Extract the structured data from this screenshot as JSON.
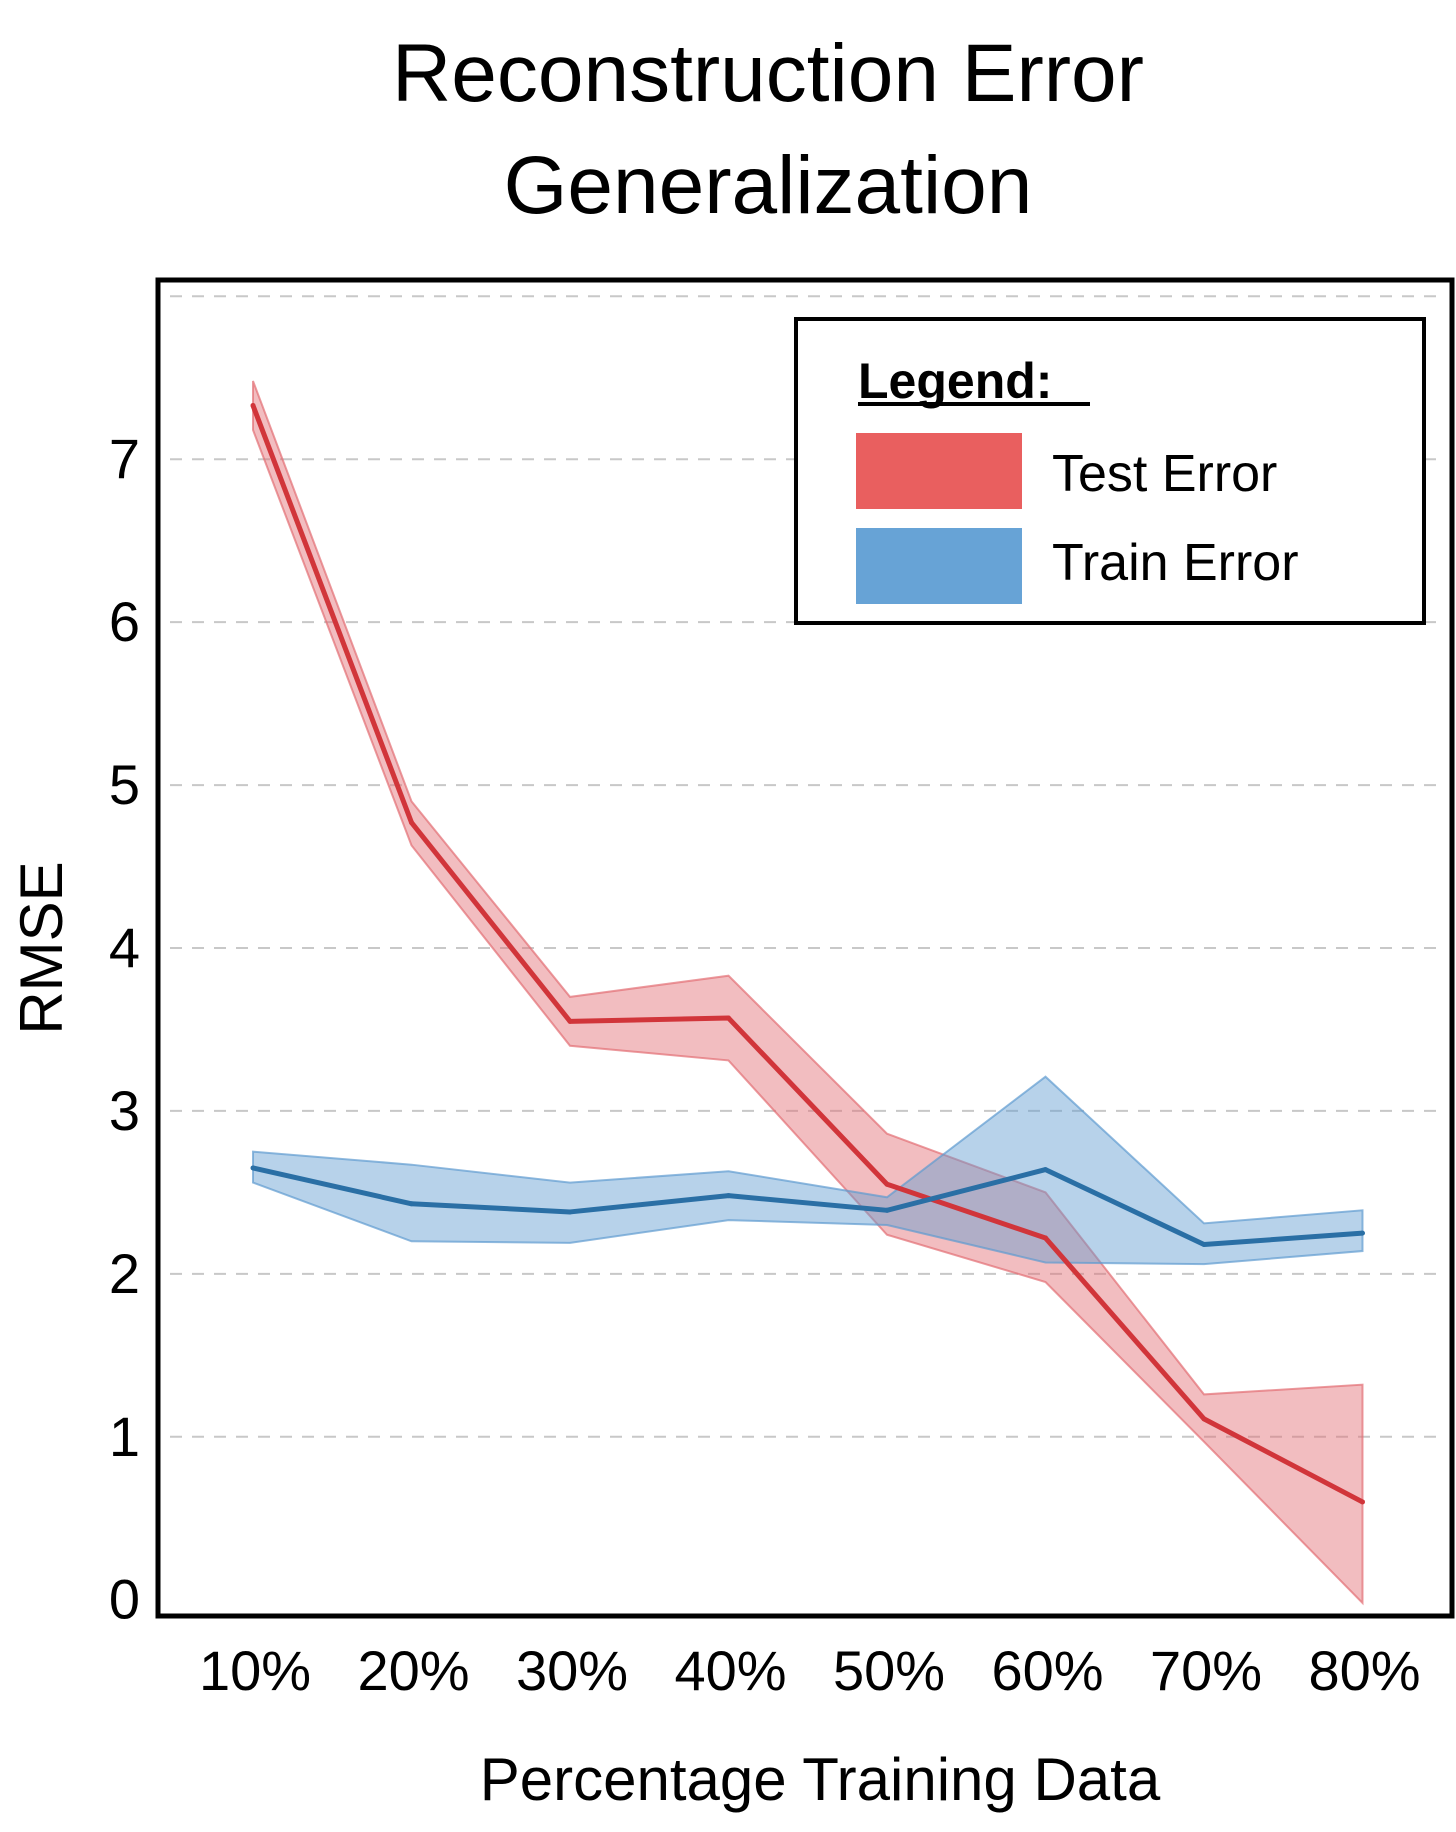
{
  "chart_data": {
    "type": "line",
    "title": [
      "Reconstruction Error",
      "Generalization"
    ],
    "xlabel": "Percentage Training Data",
    "ylabel": "RMSE",
    "categories": [
      "10%",
      "20%",
      "30%",
      "40%",
      "50%",
      "60%",
      "70%",
      "80%"
    ],
    "yticks": [
      "0",
      "1",
      "2",
      "3",
      "4",
      "5",
      "6",
      "7"
    ],
    "ylim": [
      -0.1,
      8.1
    ],
    "grid": true,
    "legend": {
      "title": "Legend:",
      "placement": "top-right"
    },
    "series": [
      {
        "name": "Test Error",
        "color": "#d1353a",
        "band_color": "#e36d73",
        "values": [
          7.33,
          4.77,
          3.55,
          3.57,
          2.55,
          2.22,
          1.11,
          0.6
        ],
        "lower": [
          7.18,
          4.63,
          3.4,
          3.31,
          2.24,
          1.95,
          0.97,
          -0.02
        ],
        "upper": [
          7.48,
          4.9,
          3.7,
          3.83,
          2.86,
          2.5,
          1.26,
          1.32
        ]
      },
      {
        "name": "Train Error",
        "color": "#2a6fa5",
        "band_color": "#5f9bd0",
        "values": [
          2.65,
          2.43,
          2.38,
          2.48,
          2.39,
          2.64,
          2.18,
          2.25
        ],
        "lower": [
          2.56,
          2.2,
          2.19,
          2.33,
          2.3,
          2.07,
          2.06,
          2.14
        ],
        "upper": [
          2.75,
          2.67,
          2.56,
          2.63,
          2.47,
          3.21,
          2.31,
          2.39
        ]
      }
    ]
  }
}
